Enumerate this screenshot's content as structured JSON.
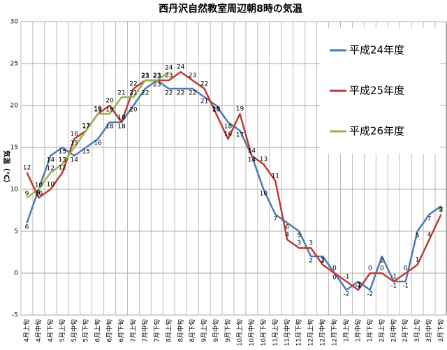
{
  "chart_data": {
    "type": "line",
    "title": "西丹沢自然教室周辺朝8時の気温",
    "y_label": "気温（℃）",
    "categories": [
      "4月上旬",
      "4月中旬",
      "4月下旬",
      "5月上旬",
      "5月中旬",
      "5月下旬",
      "6月上旬",
      "6月中旬",
      "6月下旬",
      "7月上旬",
      "7月中旬",
      "7月下旬",
      "8月上旬",
      "8月中旬",
      "8月下旬",
      "9月上旬",
      "9月中旬",
      "9月下旬",
      "10月上旬",
      "10月中旬",
      "10月下旬",
      "11月上旬",
      "11月中旬",
      "11月下旬",
      "12月上旬",
      "12月中旬",
      "12月下旬",
      "1月上旬",
      "1月中旬",
      "1月下旬",
      "2月上旬",
      "2月中旬",
      "2月下旬",
      "3月上旬",
      "3月中旬",
      "3月下旬"
    ],
    "series": [
      {
        "name": "平成24年度",
        "color": "#4a7ab5",
        "values": [
          6,
          10,
          14,
          15,
          14,
          15,
          16,
          18,
          18,
          20,
          22,
          23,
          22,
          22,
          22,
          21,
          20,
          18,
          17,
          14,
          10,
          7,
          6,
          5,
          2,
          2,
          0,
          -2,
          -1,
          -2,
          2,
          -1,
          -1,
          5,
          7,
          8
        ]
      },
      {
        "name": "平成25年度",
        "color": "#be3a34",
        "values": [
          12,
          9,
          10,
          12,
          16,
          17,
          19,
          20,
          18,
          22,
          23,
          23,
          23,
          24,
          23,
          22,
          19,
          16,
          19,
          14,
          13,
          11,
          4,
          3,
          3,
          1,
          0,
          -1,
          -2,
          0,
          0,
          -1,
          0,
          1,
          4,
          7
        ]
      },
      {
        "name": "平成26年度",
        "color": "#94b64c",
        "values": [
          9,
          10,
          12,
          13,
          15,
          17,
          19,
          19,
          21,
          21,
          23,
          23,
          24,
          null,
          null,
          null,
          null,
          null,
          null,
          null,
          null,
          null,
          null,
          null,
          null,
          null,
          null,
          null,
          null,
          null,
          null,
          null,
          null,
          null,
          null,
          null
        ]
      }
    ],
    "ylim": [
      -5,
      30
    ],
    "yticks": [
      -5,
      0,
      5,
      10,
      15,
      20,
      25,
      30
    ],
    "grid": true
  }
}
